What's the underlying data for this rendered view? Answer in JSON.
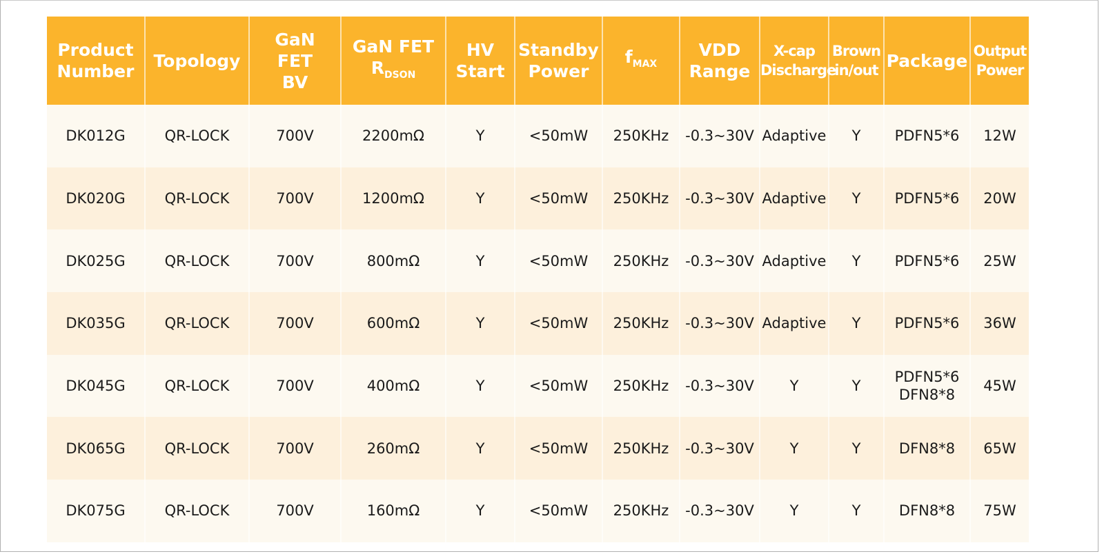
{
  "table": {
    "headers": [
      {
        "label": "Product Number",
        "lines": [
          "Product",
          "Number"
        ]
      },
      {
        "label": "Topology",
        "lines": [
          "Topology"
        ]
      },
      {
        "label": "GaN FET BV",
        "lines": [
          "GaN",
          "FET",
          "BV"
        ]
      },
      {
        "label": "GaN FET RDSON",
        "lines": [
          "GaN FET"
        ],
        "main": "R",
        "sub": "DSON"
      },
      {
        "label": "HV Start",
        "lines": [
          "HV",
          "Start"
        ]
      },
      {
        "label": "Standby Power",
        "lines": [
          "Standby",
          "Power"
        ]
      },
      {
        "label": "fMAX",
        "main": "f",
        "sub": "MAX"
      },
      {
        "label": "VDD Range",
        "lines": [
          "VDD",
          "Range"
        ]
      },
      {
        "label": "X-cap Discharge",
        "lines": [
          "X-cap",
          "Discharge"
        ]
      },
      {
        "label": "Brown in/out",
        "lines": [
          "Brown",
          "in/out"
        ]
      },
      {
        "label": "Package",
        "lines": [
          "Package"
        ]
      },
      {
        "label": "Output Power",
        "lines": [
          "Output",
          "Power"
        ]
      }
    ],
    "rows": [
      [
        "DK012G",
        "QR-LOCK",
        "700V",
        "2200mΩ",
        "Y",
        "<50mW",
        "250KHz",
        "-0.3~30V",
        "Adaptive",
        "Y",
        "PDFN5*6",
        "12W"
      ],
      [
        "DK020G",
        "QR-LOCK",
        "700V",
        "1200mΩ",
        "Y",
        "<50mW",
        "250KHz",
        "-0.3~30V",
        "Adaptive",
        "Y",
        "PDFN5*6",
        "20W"
      ],
      [
        "DK025G",
        "QR-LOCK",
        "700V",
        "800mΩ",
        "Y",
        "<50mW",
        "250KHz",
        "-0.3~30V",
        "Adaptive",
        "Y",
        "PDFN5*6",
        "25W"
      ],
      [
        "DK035G",
        "QR-LOCK",
        "700V",
        "600mΩ",
        "Y",
        "<50mW",
        "250KHz",
        "-0.3~30V",
        "Adaptive",
        "Y",
        "PDFN5*6",
        "36W"
      ],
      [
        "DK045G",
        "QR-LOCK",
        "700V",
        "400mΩ",
        "Y",
        "<50mW",
        "250KHz",
        "-0.3~30V",
        "Y",
        "Y",
        "PDFN5*6\nDFN8*8",
        "45W"
      ],
      [
        "DK065G",
        "QR-LOCK",
        "700V",
        "260mΩ",
        "Y",
        "<50mW",
        "250KHz",
        "-0.3~30V",
        "Y",
        "Y",
        "DFN8*8",
        "65W"
      ],
      [
        "DK075G",
        "QR-LOCK",
        "700V",
        "160mΩ",
        "Y",
        "<50mW",
        "250KHz",
        "-0.3~30V",
        "Y",
        "Y",
        "DFN8*8",
        "75W"
      ]
    ]
  },
  "colors": {
    "header": "#fbb42c",
    "row_light": "#fdf9f0",
    "row_dark": "#fdf0dc"
  }
}
